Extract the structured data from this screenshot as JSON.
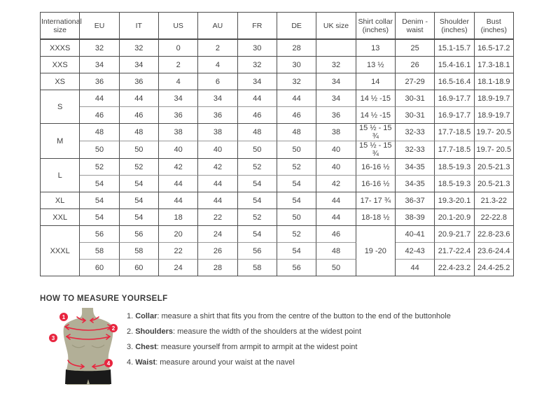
{
  "colors": {
    "border": "#4d4d4d",
    "sub_divider": "#9a9a9a",
    "accent_red": "#e8253f",
    "torso_fill": "#b2af97",
    "shorts_fill": "#1a1a1a",
    "text": "#3f3f3f"
  },
  "size_table": {
    "columns": [
      "International size",
      "EU",
      "IT",
      "US",
      "AU",
      "FR",
      "DE",
      "UK size",
      "Shirt collar (inches)",
      "Denim - waist",
      "Shoulder (inches)",
      "Bust (inches)"
    ],
    "rows": [
      {
        "cells": [
          {
            "t": "XXXS"
          },
          {
            "t": "32"
          },
          {
            "t": "32"
          },
          {
            "t": "0"
          },
          {
            "t": "2"
          },
          {
            "t": "30"
          },
          {
            "t": "28"
          },
          {
            "t": ""
          },
          {
            "t": "13"
          },
          {
            "t": "25"
          },
          {
            "t": "15.1-15.7"
          },
          {
            "t": "16.5-17.2"
          }
        ]
      },
      {
        "cells": [
          {
            "t": "XXS"
          },
          {
            "t": "34"
          },
          {
            "t": "34"
          },
          {
            "t": "2"
          },
          {
            "t": "4"
          },
          {
            "t": "32"
          },
          {
            "t": "30"
          },
          {
            "t": "32"
          },
          {
            "t": "13 ½"
          },
          {
            "t": "26"
          },
          {
            "t": "15.4-16.1"
          },
          {
            "t": "17.3-18.1"
          }
        ]
      },
      {
        "cells": [
          {
            "t": "XS"
          },
          {
            "t": "36"
          },
          {
            "t": "36"
          },
          {
            "t": "4"
          },
          {
            "t": "6"
          },
          {
            "t": "34"
          },
          {
            "t": "32"
          },
          {
            "t": "34"
          },
          {
            "t": "14"
          },
          {
            "t": "27-29"
          },
          {
            "t": "16.5-16.4"
          },
          {
            "t": "18.1-18.9"
          }
        ]
      },
      {
        "cells": [
          {
            "t": "S",
            "rs": 2
          },
          {
            "t": "44"
          },
          {
            "t": "44"
          },
          {
            "t": "34"
          },
          {
            "t": "34"
          },
          {
            "t": "44"
          },
          {
            "t": "44"
          },
          {
            "t": "34"
          },
          {
            "t": "14 ½ -15"
          },
          {
            "t": "30-31"
          },
          {
            "t": "16.9-17.7"
          },
          {
            "t": "18.9-19.7"
          }
        ]
      },
      {
        "sub": true,
        "cells": [
          {
            "t": "46"
          },
          {
            "t": "46"
          },
          {
            "t": "36"
          },
          {
            "t": "36"
          },
          {
            "t": "46"
          },
          {
            "t": "46"
          },
          {
            "t": "36"
          },
          {
            "t": "14 ½ -15"
          },
          {
            "t": "30-31"
          },
          {
            "t": "16.9-17.7"
          },
          {
            "t": "18.9-19.7"
          }
        ]
      },
      {
        "cells": [
          {
            "t": "M",
            "rs": 2
          },
          {
            "t": "48"
          },
          {
            "t": "48"
          },
          {
            "t": "38"
          },
          {
            "t": "38"
          },
          {
            "t": "48"
          },
          {
            "t": "48"
          },
          {
            "t": "38"
          },
          {
            "t": "15 ½ - 15 ¾"
          },
          {
            "t": "32-33"
          },
          {
            "t": "17.7-18.5"
          },
          {
            "t": "19.7- 20.5"
          }
        ]
      },
      {
        "sub": true,
        "cells": [
          {
            "t": "50"
          },
          {
            "t": "50"
          },
          {
            "t": "40"
          },
          {
            "t": "40"
          },
          {
            "t": "50"
          },
          {
            "t": "50"
          },
          {
            "t": "40"
          },
          {
            "t": "15 ½ - 15 ¾"
          },
          {
            "t": "32-33"
          },
          {
            "t": "17.7-18.5"
          },
          {
            "t": "19.7- 20.5"
          }
        ]
      },
      {
        "cells": [
          {
            "t": "L",
            "rs": 2
          },
          {
            "t": "52"
          },
          {
            "t": "52"
          },
          {
            "t": "42"
          },
          {
            "t": "42"
          },
          {
            "t": "52"
          },
          {
            "t": "52"
          },
          {
            "t": "40"
          },
          {
            "t": "16-16 ½"
          },
          {
            "t": "34-35"
          },
          {
            "t": "18.5-19.3"
          },
          {
            "t": "20.5-21.3"
          }
        ]
      },
      {
        "sub": true,
        "cells": [
          {
            "t": "54"
          },
          {
            "t": "54"
          },
          {
            "t": "44"
          },
          {
            "t": "44"
          },
          {
            "t": "54"
          },
          {
            "t": "54"
          },
          {
            "t": "42"
          },
          {
            "t": "16-16 ½"
          },
          {
            "t": "34-35"
          },
          {
            "t": "18.5-19.3"
          },
          {
            "t": "20.5-21.3"
          }
        ]
      },
      {
        "cells": [
          {
            "t": "XL"
          },
          {
            "t": "54"
          },
          {
            "t": "54"
          },
          {
            "t": "44"
          },
          {
            "t": "44"
          },
          {
            "t": "54"
          },
          {
            "t": "54"
          },
          {
            "t": "44"
          },
          {
            "t": "17- 17 ¾"
          },
          {
            "t": "36-37"
          },
          {
            "t": "19.3-20.1"
          },
          {
            "t": "21.3-22"
          }
        ]
      },
      {
        "cells": [
          {
            "t": "XXL"
          },
          {
            "t": "54"
          },
          {
            "t": "54"
          },
          {
            "t": "18"
          },
          {
            "t": "22"
          },
          {
            "t": "52"
          },
          {
            "t": "50"
          },
          {
            "t": "44"
          },
          {
            "t": "18-18 ½"
          },
          {
            "t": "38-39"
          },
          {
            "t": "20.1-20.9"
          },
          {
            "t": "22-22.8"
          }
        ]
      },
      {
        "cells": [
          {
            "t": "XXXL",
            "rs": 3
          },
          {
            "t": "56"
          },
          {
            "t": "56"
          },
          {
            "t": "20"
          },
          {
            "t": "24"
          },
          {
            "t": "54"
          },
          {
            "t": "52"
          },
          {
            "t": "46"
          },
          {
            "t": "19 -20",
            "rs": 3
          },
          {
            "t": "40-41"
          },
          {
            "t": "20.9-21.7"
          },
          {
            "t": "22.8-23.6"
          }
        ]
      },
      {
        "sub": true,
        "cells": [
          {
            "t": "58"
          },
          {
            "t": "58"
          },
          {
            "t": "22"
          },
          {
            "t": "26"
          },
          {
            "t": "56"
          },
          {
            "t": "54"
          },
          {
            "t": "48"
          },
          {
            "t": "42-43"
          },
          {
            "t": "21.7-22.4"
          },
          {
            "t": "23.6-24.4"
          }
        ]
      },
      {
        "sub": true,
        "cells": [
          {
            "t": "60"
          },
          {
            "t": "60"
          },
          {
            "t": "24"
          },
          {
            "t": "28"
          },
          {
            "t": "58"
          },
          {
            "t": "56"
          },
          {
            "t": "50"
          },
          {
            "t": "44"
          },
          {
            "t": "22.4-23.2"
          },
          {
            "t": "24.4-25.2"
          }
        ]
      }
    ]
  },
  "howto": {
    "heading": "HOW TO MEASURE YOURSELF",
    "diagram": {
      "markers": [
        "1",
        "2",
        "3",
        "4"
      ]
    },
    "items": [
      {
        "num": "1.",
        "term": "Collar",
        "desc": ": measure a shirt that fits you from the centre of the button to the end of the buttonhole"
      },
      {
        "num": "2.",
        "term": "Shoulders",
        "desc": ": measure the width of the shoulders at the widest point"
      },
      {
        "num": "3.",
        "term": "Chest",
        "desc": ": measure yourself from armpit to armpit at the widest point"
      },
      {
        "num": "4.",
        "term": "Waist",
        "desc": ": measure around your waist at the navel"
      }
    ]
  }
}
